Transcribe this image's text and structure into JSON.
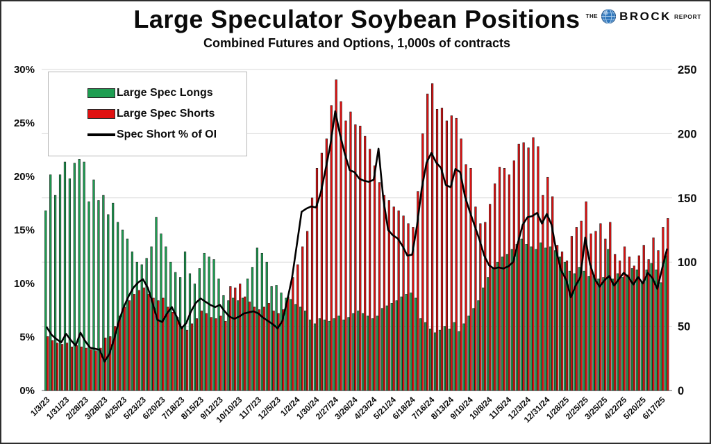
{
  "header": {
    "title": "Large Speculator Soybean Positions",
    "subtitle": "Combined Futures and Options, 1,000s of contracts"
  },
  "logo": {
    "the": "THE",
    "brock": "BROCK",
    "report": "REPORT",
    "globe_color": "#2f76bb"
  },
  "chart_data": {
    "type": "bar",
    "title": "Large Speculator Soybean Positions",
    "subtitle": "Combined Futures and Options, 1,000s of contracts",
    "legend_position": "top-left",
    "grid": {
      "horizontal_right_axis_values": [
        50,
        100,
        150,
        200,
        250
      ]
    },
    "axes": {
      "left": {
        "min": 0,
        "max": 30,
        "unit": "%",
        "ticks": [
          "0%",
          "5%",
          "10%",
          "15%",
          "20%",
          "25%",
          "30%"
        ]
      },
      "right": {
        "min": 0,
        "max": 250,
        "ticks": [
          0,
          50,
          100,
          150,
          200,
          250
        ]
      }
    },
    "x_label_every": 4,
    "x": [
      "1/3/23",
      "1/10/23",
      "1/17/23",
      "1/24/23",
      "1/31/23",
      "2/7/23",
      "2/14/23",
      "2/21/23",
      "2/28/23",
      "3/7/23",
      "3/14/23",
      "3/21/23",
      "3/28/23",
      "4/4/23",
      "4/11/23",
      "4/18/23",
      "4/25/23",
      "5/2/23",
      "5/9/23",
      "5/16/23",
      "5/23/23",
      "5/30/23",
      "6/6/23",
      "6/13/23",
      "6/20/23",
      "6/27/23",
      "7/5/23",
      "7/11/23",
      "7/18/23",
      "7/25/23",
      "8/1/23",
      "8/8/23",
      "8/15/23",
      "8/22/23",
      "8/29/23",
      "9/5/23",
      "9/12/23",
      "9/19/23",
      "9/26/23",
      "10/3/23",
      "10/10/23",
      "10/17/23",
      "10/24/23",
      "10/31/23",
      "11/7/23",
      "11/14/23",
      "11/21/23",
      "11/28/23",
      "12/5/23",
      "12/12/23",
      "12/19/23",
      "12/26/23",
      "1/2/24",
      "1/9/24",
      "1/16/24",
      "1/23/24",
      "1/30/24",
      "2/6/24",
      "2/13/24",
      "2/20/24",
      "2/27/24",
      "3/5/24",
      "3/12/24",
      "3/19/24",
      "3/26/24",
      "4/2/24",
      "4/9/24",
      "4/16/24",
      "4/23/24",
      "4/30/24",
      "5/7/24",
      "5/14/24",
      "5/21/24",
      "5/28/24",
      "6/4/24",
      "6/11/24",
      "6/18/24",
      "6/25/24",
      "7/2/24",
      "7/9/24",
      "7/16/24",
      "7/23/24",
      "7/30/24",
      "8/6/24",
      "8/13/24",
      "8/20/24",
      "8/27/24",
      "9/3/24",
      "9/10/24",
      "9/17/24",
      "9/24/24",
      "10/1/24",
      "10/8/24",
      "10/15/24",
      "10/22/24",
      "10/29/24",
      "11/5/24",
      "11/12/24",
      "11/19/24",
      "11/26/24",
      "12/3/24",
      "12/10/24",
      "12/17/24",
      "12/24/24",
      "12/31/24",
      "1/7/25",
      "1/14/25",
      "1/21/25",
      "1/28/25",
      "2/4/25",
      "2/11/25",
      "2/18/25",
      "2/25/25",
      "3/4/25",
      "3/11/25",
      "3/18/25",
      "3/25/25",
      "4/1/25",
      "4/8/25",
      "4/15/25",
      "4/22/25",
      "4/29/25",
      "5/6/25",
      "5/13/25",
      "5/20/25",
      "5/27/25",
      "6/3/25",
      "6/10/25",
      "6/17/25",
      "6/24/25"
    ],
    "series": [
      {
        "name": "Large Spec Longs",
        "type": "bar",
        "axis": "right",
        "color": "#1e9e52",
        "values": [
          140,
          168,
          152,
          168,
          178,
          165,
          177,
          180,
          178,
          147,
          164,
          148,
          152,
          137,
          146,
          131,
          125,
          118,
          108,
          100,
          98,
          103,
          112,
          135,
          122,
          112,
          100,
          92,
          88,
          108,
          91,
          83,
          95,
          107,
          104,
          102,
          87,
          74,
          70,
          72,
          70,
          72,
          87,
          96,
          111,
          107,
          100,
          81,
          82,
          76,
          72,
          71,
          67,
          65,
          62,
          55,
          52,
          56,
          55,
          54,
          56,
          58,
          55,
          57,
          60,
          62,
          60,
          58,
          56,
          58,
          64,
          66,
          68,
          70,
          73,
          75,
          76,
          72,
          56,
          53,
          48,
          45,
          47,
          50,
          48,
          53,
          46,
          52,
          58,
          64,
          70,
          80,
          88,
          95,
          100,
          104,
          106,
          110,
          114,
          118,
          114,
          112,
          110,
          115,
          111,
          112,
          109,
          104,
          100,
          93,
          91,
          96,
          93,
          89,
          90,
          87,
          88,
          110,
          87,
          91,
          88,
          90,
          95,
          94,
          85,
          94,
          99,
          94,
          84,
          105
        ]
      },
      {
        "name": "Large Spec Shorts",
        "type": "bar",
        "axis": "right",
        "color": "#e01111",
        "values": [
          42,
          39,
          37,
          36,
          37,
          34,
          35,
          34,
          33,
          32,
          31,
          33,
          41,
          42,
          50,
          58,
          65,
          70,
          75,
          78,
          80,
          75,
          72,
          70,
          72,
          65,
          61,
          57,
          50,
          47,
          52,
          56,
          62,
          60,
          57,
          56,
          58,
          54,
          81,
          80,
          83,
          73,
          69,
          65,
          63,
          65,
          68,
          62,
          60,
          63,
          73,
          88,
          98,
          112,
          124,
          150,
          173,
          185,
          196,
          222,
          242,
          225,
          210,
          217,
          207,
          206,
          198,
          188,
          175,
          162,
          152,
          148,
          143,
          140,
          136,
          130,
          127,
          155,
          200,
          231,
          239,
          219,
          220,
          210,
          214,
          212,
          196,
          176,
          173,
          143,
          130,
          131,
          145,
          161,
          174,
          173,
          168,
          179,
          192,
          193,
          189,
          197,
          190,
          152,
          166,
          151,
          113,
          108,
          101,
          120,
          127,
          132,
          147,
          122,
          124,
          130,
          118,
          131,
          106,
          101,
          112,
          104,
          97,
          105,
          113,
          102,
          119,
          109,
          127,
          134
        ]
      },
      {
        "name": "Spec Short % of OI",
        "type": "line",
        "axis": "left",
        "color": "#000000",
        "values": [
          5.9,
          5.2,
          4.8,
          4.5,
          5.3,
          4.7,
          4.2,
          5.4,
          4.6,
          4.0,
          3.9,
          3.8,
          2.7,
          3.4,
          4.8,
          6.5,
          7.8,
          8.8,
          9.6,
          10.1,
          10.4,
          9.6,
          8.2,
          6.6,
          6.4,
          7.2,
          7.8,
          6.9,
          5.8,
          6.3,
          7.4,
          8.2,
          8.6,
          8.3,
          8.0,
          7.8,
          8.0,
          7.4,
          6.9,
          6.7,
          6.9,
          7.2,
          7.3,
          7.4,
          7.2,
          6.8,
          6.5,
          6.2,
          5.8,
          6.5,
          8.4,
          10.5,
          13.6,
          16.7,
          17.0,
          17.2,
          17.1,
          18.5,
          20.7,
          23.0,
          26.1,
          23.9,
          22.1,
          20.6,
          20.4,
          19.8,
          19.6,
          19.5,
          19.7,
          22.6,
          17.9,
          15.0,
          14.5,
          14.2,
          13.5,
          12.6,
          12.7,
          15.4,
          18.9,
          21.3,
          22.2,
          21.3,
          20.8,
          19.2,
          19.0,
          20.7,
          20.4,
          18.1,
          16.7,
          15.4,
          14.1,
          12.6,
          11.7,
          11.4,
          11.5,
          11.4,
          11.6,
          12.0,
          13.8,
          15.5,
          16.2,
          16.3,
          16.6,
          15.6,
          16.5,
          15.5,
          13.0,
          11.2,
          10.4,
          8.7,
          9.8,
          10.6,
          14.3,
          11.8,
          10.4,
          9.7,
          10.3,
          10.7,
          9.8,
          10.4,
          11.0,
          10.6,
          9.9,
          10.6,
          10.0,
          11.0,
          10.5,
          9.5,
          11.4,
          13.2
        ]
      }
    ]
  }
}
